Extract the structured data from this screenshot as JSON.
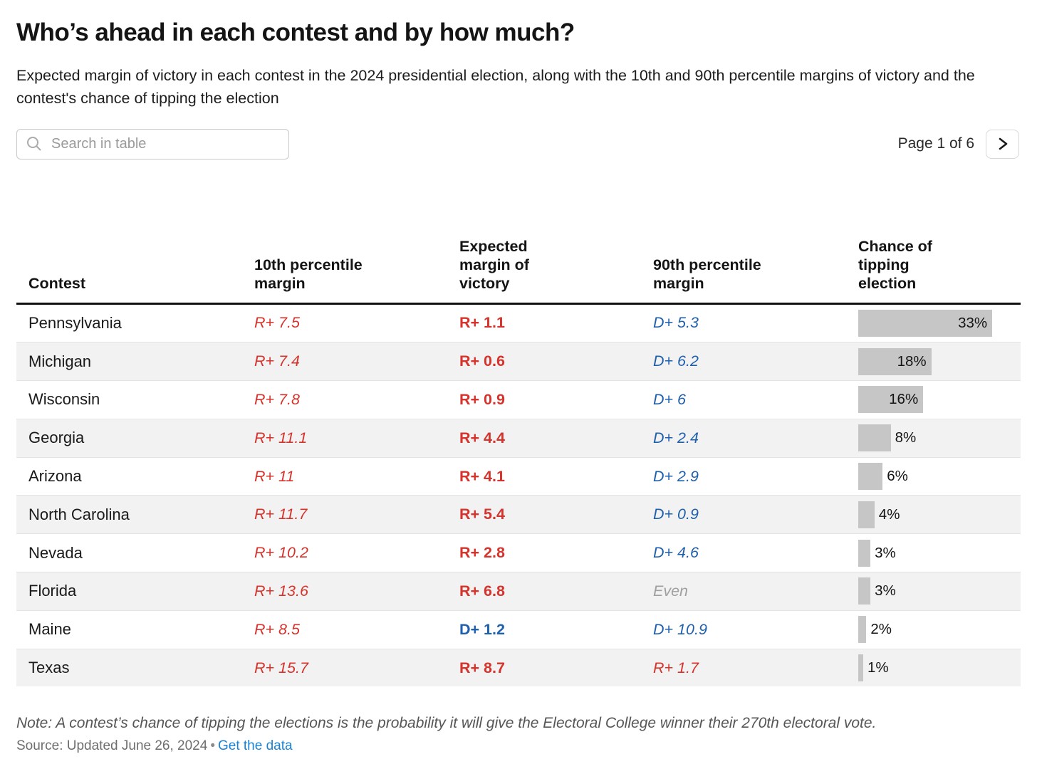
{
  "header": {
    "title": "Who’s ahead in each contest and by how much?",
    "subtitle": "Expected margin of victory in each contest in the 2024 presidential election, along with the 10th and 90th percentile margins of victory and the contest's chance of tipping the election"
  },
  "toolbar": {
    "search_placeholder": "Search in table",
    "search_icon": "magnifier",
    "page_label": "Page 1 of 6",
    "next_icon": "chevron-right"
  },
  "chart_data": {
    "type": "table",
    "title": "Who’s ahead in each contest and by how much?",
    "columns": [
      "Contest",
      "10th percentile margin",
      "Expected margin of victory",
      "90th percentile margin",
      "Chance of tipping election"
    ],
    "rows": [
      {
        "contest": "Pennsylvania",
        "p10": "R+ 7.5",
        "expected": "R+ 1.1",
        "p90": "D+ 5.3",
        "tip_pct": 33,
        "tip_label": "33%"
      },
      {
        "contest": "Michigan",
        "p10": "R+ 7.4",
        "expected": "R+ 0.6",
        "p90": "D+ 6.2",
        "tip_pct": 18,
        "tip_label": "18%"
      },
      {
        "contest": "Wisconsin",
        "p10": "R+ 7.8",
        "expected": "R+ 0.9",
        "p90": "D+ 6",
        "tip_pct": 16,
        "tip_label": "16%"
      },
      {
        "contest": "Georgia",
        "p10": "R+ 11.1",
        "expected": "R+ 4.4",
        "p90": "D+ 2.4",
        "tip_pct": 8,
        "tip_label": "8%"
      },
      {
        "contest": "Arizona",
        "p10": "R+ 11",
        "expected": "R+ 4.1",
        "p90": "D+ 2.9",
        "tip_pct": 6,
        "tip_label": "6%"
      },
      {
        "contest": "North Carolina",
        "p10": "R+ 11.7",
        "expected": "R+ 5.4",
        "p90": "D+ 0.9",
        "tip_pct": 4,
        "tip_label": "4%"
      },
      {
        "contest": "Nevada",
        "p10": "R+ 10.2",
        "expected": "R+ 2.8",
        "p90": "D+ 4.6",
        "tip_pct": 3,
        "tip_label": "3%"
      },
      {
        "contest": "Florida",
        "p10": "R+ 13.6",
        "expected": "R+ 6.8",
        "p90": "Even",
        "tip_pct": 3,
        "tip_label": "3%"
      },
      {
        "contest": "Maine",
        "p10": "R+ 8.5",
        "expected": "D+ 1.2",
        "p90": "D+ 10.9",
        "tip_pct": 2,
        "tip_label": "2%"
      },
      {
        "contest": "Texas",
        "p10": "R+ 15.7",
        "expected": "R+ 8.7",
        "p90": "R+ 1.7",
        "tip_pct": 1,
        "tip_label": "1%"
      }
    ],
    "bar_column": "Chance of tipping election",
    "bar_axis_max_pct": 33,
    "legend": "none",
    "notes": "bars are gray horizontal bars starting at the left of the last column; labels inside bar when wide, outside when narrow"
  },
  "footer": {
    "note": "Note: A contest’s chance of tipping the elections is the probability it will give the Electoral College winner their 270th electoral vote.",
    "source_prefix": "Source: Updated June 26, 2024",
    "bullet": "•",
    "link": "Get the data"
  },
  "colors": {
    "republican": "#d5332b",
    "democrat": "#1f60ad",
    "even": "#9f9f9f",
    "bar_fill": "#c6c6c6",
    "alt_row": "#f2f2f2",
    "link": "#1982d4"
  }
}
